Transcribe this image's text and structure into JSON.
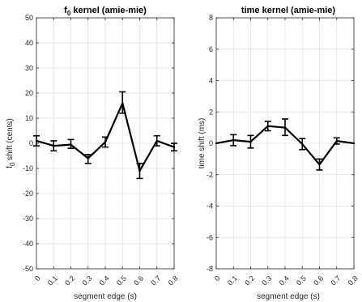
{
  "chart_data": [
    {
      "type": "line",
      "title_main": "f",
      "title_sub": "0",
      "title_rest": " kernel (amie-mie)",
      "xlabel": "segment edge (s)",
      "ylabel_main": "f",
      "ylabel_sub": "0",
      "ylabel_rest": " shift (cents)",
      "x": [
        0,
        0.1,
        0.2,
        0.3,
        0.4,
        0.5,
        0.6,
        0.7,
        0.8
      ],
      "xticks": [
        "0",
        "0.1",
        "0.2",
        "0.3",
        "0.4",
        "0.5",
        "0.6",
        "0.7",
        "0.8"
      ],
      "xlim": [
        0,
        0.8
      ],
      "ylim": [
        -50,
        50
      ],
      "yticks": [
        "-50",
        "-40",
        "-30",
        "-20",
        "-10",
        "0",
        "10",
        "20",
        "30",
        "40",
        "50"
      ],
      "grid": true,
      "series": [
        {
          "values": [
            1,
            -1,
            -0.5,
            -6,
            0.5,
            16,
            -11,
            1,
            -1.5
          ],
          "err_low": [
            -1,
            -3,
            -2,
            -8,
            -1.5,
            12,
            -14,
            -1,
            -3
          ],
          "err_high": [
            3,
            1,
            1.5,
            -4.5,
            2.5,
            20.5,
            -8,
            3,
            0
          ]
        }
      ],
      "line_color": "#000000"
    },
    {
      "type": "line",
      "title": "time kernel (amie-mie)",
      "xlabel": "segment edge (s)",
      "ylabel": "time shift (ms)",
      "x": [
        0,
        0.1,
        0.2,
        0.3,
        0.4,
        0.5,
        0.6,
        0.7,
        0.8
      ],
      "xticks": [
        "0",
        "0.1",
        "0.2",
        "0.3",
        "0.4",
        "0.5",
        "0.6",
        "0.7",
        "0.8"
      ],
      "xlim": [
        0,
        0.8
      ],
      "ylim": [
        -8,
        8
      ],
      "yticks": [
        "-8",
        "-6",
        "-4",
        "-2",
        "0",
        "2",
        "4",
        "6",
        "8"
      ],
      "grid": true,
      "series": [
        {
          "values": [
            0,
            0.2,
            0.1,
            1.1,
            1.0,
            -0.05,
            -1.35,
            0.15,
            0
          ],
          "err_low": [
            0,
            -0.15,
            -0.3,
            0.8,
            0.5,
            -0.4,
            -1.7,
            -0.05,
            0
          ],
          "err_high": [
            0,
            0.55,
            0.5,
            1.4,
            1.55,
            0.3,
            -1.0,
            0.35,
            0
          ]
        }
      ],
      "line_color": "#000000"
    }
  ]
}
